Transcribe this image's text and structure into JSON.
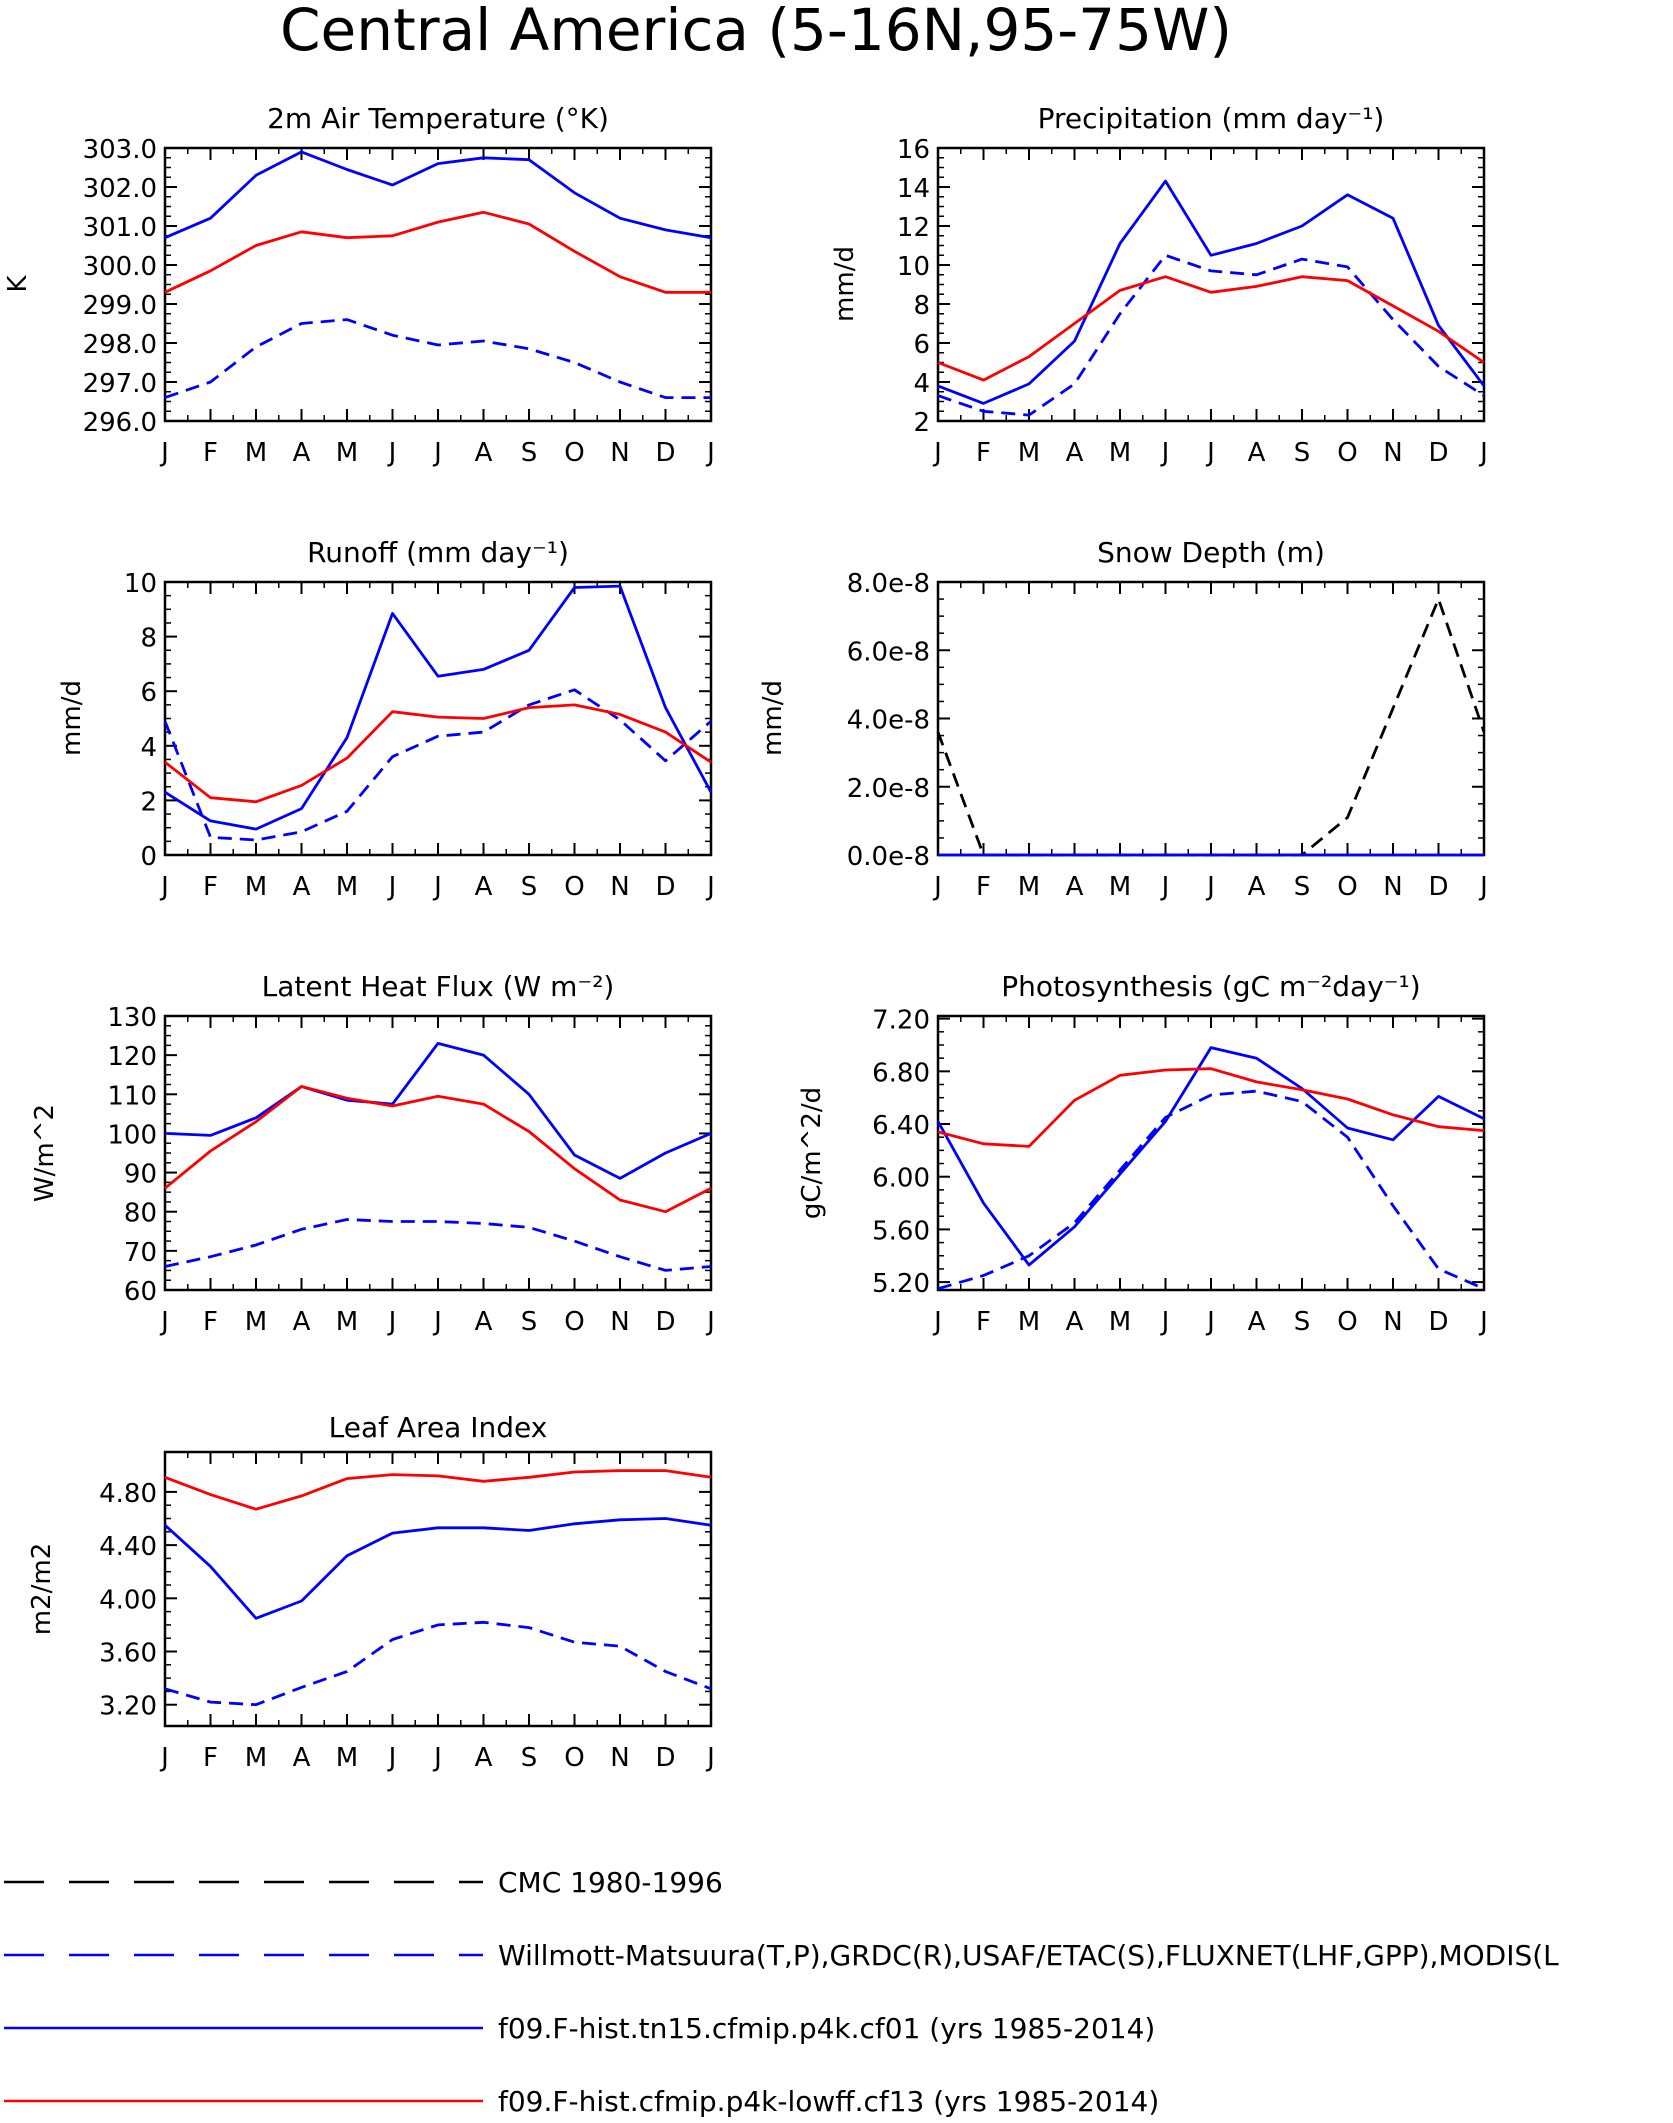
{
  "figure": {
    "title": "Central America (5-16N,95-75W)"
  },
  "months": [
    "J",
    "F",
    "M",
    "A",
    "M",
    "J",
    "J",
    "A",
    "S",
    "O",
    "N",
    "D",
    "J"
  ],
  "colors": {
    "cmc": "#000000",
    "obs": "#0000ff",
    "cf01": "#0000ff",
    "cf13": "#ff0000"
  },
  "legend": [
    {
      "key": "cmc",
      "label": "CMC 1980-1996",
      "color": "#000000",
      "dash": "dashed"
    },
    {
      "key": "obs",
      "label": "Willmott-Matsuura(T,P),GRDC(R),USAF/ETAC(S),FLUXNET(LHF,GPP),MODIS(L",
      "color": "#0000ff",
      "dash": "dashed"
    },
    {
      "key": "cf01",
      "label": "f09.F-hist.tn15.cfmip.p4k.cf01 (yrs 1985-2014)",
      "color": "#0000ff",
      "dash": "solid"
    },
    {
      "key": "cf13",
      "label": "f09.F-hist.cfmip.p4k-lowff.cf13 (yrs 1985-2014)",
      "color": "#ff0000",
      "dash": "solid"
    }
  ],
  "chart_data": [
    {
      "id": "temp",
      "type": "line",
      "title": "2m Air Temperature (°K)",
      "ylabel": "K",
      "ylim": [
        296,
        303
      ],
      "yticks": [
        296,
        297,
        298,
        299,
        300,
        301,
        302,
        303
      ],
      "ytick_labels": [
        "296.0",
        "297.0",
        "298.0",
        "299.0",
        "300.0",
        "301.0",
        "302.0",
        "303.0"
      ],
      "series": [
        {
          "key": "obs",
          "values": [
            296.6,
            297.0,
            297.9,
            298.5,
            298.6,
            298.2,
            297.95,
            298.05,
            297.85,
            297.5,
            297.0,
            296.6,
            296.6
          ]
        },
        {
          "key": "cf01",
          "values": [
            300.7,
            301.2,
            302.3,
            302.9,
            302.45,
            302.05,
            302.6,
            302.75,
            302.7,
            301.85,
            301.2,
            300.9,
            300.7
          ]
        },
        {
          "key": "cf13",
          "values": [
            299.3,
            299.85,
            300.5,
            300.85,
            300.7,
            300.75,
            301.1,
            301.35,
            301.05,
            300.35,
            299.7,
            299.3,
            299.3
          ]
        }
      ]
    },
    {
      "id": "precip",
      "type": "line",
      "title": "Precipitation (mm day⁻¹)",
      "ylabel": "mm/d",
      "ylim": [
        2,
        16
      ],
      "yticks": [
        2,
        4,
        6,
        8,
        10,
        12,
        14,
        16
      ],
      "ytick_labels": [
        "2",
        "4",
        "6",
        "8",
        "10",
        "12",
        "14",
        "16"
      ],
      "series": [
        {
          "key": "obs",
          "values": [
            3.3,
            2.5,
            2.3,
            3.9,
            7.5,
            10.5,
            9.7,
            9.5,
            10.3,
            9.9,
            7.2,
            4.8,
            3.3
          ]
        },
        {
          "key": "cf01",
          "values": [
            3.8,
            2.9,
            3.9,
            6.1,
            11.1,
            14.3,
            10.5,
            11.1,
            12.0,
            13.6,
            12.4,
            6.9,
            3.8
          ]
        },
        {
          "key": "cf13",
          "values": [
            5.0,
            4.1,
            5.3,
            7.0,
            8.7,
            9.4,
            8.6,
            8.9,
            9.4,
            9.2,
            7.9,
            6.6,
            5.0
          ]
        }
      ]
    },
    {
      "id": "runoff",
      "type": "line",
      "title": "Runoff (mm day⁻¹)",
      "ylabel": "mm/d",
      "ylim": [
        0,
        10
      ],
      "yticks": [
        0,
        2,
        4,
        6,
        8,
        10
      ],
      "ytick_labels": [
        "0",
        "2",
        "4",
        "6",
        "8",
        "10"
      ],
      "series": [
        {
          "key": "obs",
          "values": [
            4.9,
            0.65,
            0.55,
            0.85,
            1.6,
            3.6,
            4.35,
            4.5,
            5.5,
            6.05,
            4.95,
            3.45,
            4.9
          ]
        },
        {
          "key": "cf01",
          "values": [
            2.3,
            1.25,
            0.95,
            1.7,
            4.3,
            8.85,
            6.55,
            6.8,
            7.5,
            9.8,
            9.85,
            5.4,
            2.3
          ]
        },
        {
          "key": "cf13",
          "values": [
            3.4,
            2.1,
            1.95,
            2.55,
            3.55,
            5.25,
            5.05,
            5.0,
            5.4,
            5.5,
            5.15,
            4.5,
            3.4
          ]
        }
      ]
    },
    {
      "id": "snow",
      "type": "line",
      "title": "Snow Depth (m)",
      "ylabel": "mm/d",
      "ylim": [
        0,
        8e-08
      ],
      "yticks": [
        0,
        2e-08,
        4e-08,
        6e-08,
        8e-08
      ],
      "ytick_labels": [
        "0.0e-8",
        "2.0e-8",
        "4.0e-8",
        "6.0e-8",
        "8.0e-8"
      ],
      "series": [
        {
          "key": "cmc",
          "values": [
            3.6e-08,
            0,
            0,
            0,
            0,
            0,
            0,
            0,
            0,
            1.1e-08,
            4.3e-08,
            7.5e-08,
            3.6e-08
          ]
        },
        {
          "key": "cf01",
          "values": [
            0,
            0,
            0,
            0,
            0,
            0,
            0,
            0,
            0,
            0,
            0,
            0,
            0
          ]
        }
      ]
    },
    {
      "id": "lhf",
      "type": "line",
      "title": "Latent Heat Flux (W m⁻²)",
      "ylabel": "W/m^2",
      "ylim": [
        60,
        130
      ],
      "yticks": [
        60,
        70,
        80,
        90,
        100,
        110,
        120,
        130
      ],
      "ytick_labels": [
        "60",
        "70",
        "80",
        "90",
        "100",
        "110",
        "120",
        "130"
      ],
      "series": [
        {
          "key": "obs",
          "values": [
            66,
            68.5,
            71.5,
            75.5,
            78,
            77.5,
            77.5,
            77,
            76,
            72.5,
            68.5,
            65,
            66
          ]
        },
        {
          "key": "cf01",
          "values": [
            100,
            99.5,
            104,
            112,
            108.5,
            107.5,
            123,
            120,
            110,
            94.5,
            88.5,
            95,
            100
          ]
        },
        {
          "key": "cf13",
          "values": [
            86,
            95.5,
            103,
            112,
            109,
            107,
            109.5,
            107.5,
            100.5,
            91,
            83,
            80,
            86
          ]
        }
      ]
    },
    {
      "id": "gpp",
      "type": "line",
      "title": "Photosynthesis (gC m⁻²day⁻¹)",
      "ylabel": "gC/m^2/d",
      "ylim": [
        5.14,
        7.22
      ],
      "yticks": [
        5.2,
        5.6,
        6.0,
        6.4,
        6.8,
        7.2
      ],
      "ytick_labels": [
        "5.20",
        "5.60",
        "6.00",
        "6.40",
        "6.80",
        "7.20"
      ],
      "series": [
        {
          "key": "obs",
          "values": [
            5.15,
            5.25,
            5.4,
            5.65,
            6.05,
            6.45,
            6.62,
            6.65,
            6.57,
            6.3,
            5.78,
            5.3,
            5.15
          ]
        },
        {
          "key": "cf01",
          "values": [
            6.42,
            5.8,
            5.33,
            5.62,
            6.02,
            6.42,
            6.98,
            6.9,
            6.67,
            6.37,
            6.28,
            6.61,
            6.44
          ]
        },
        {
          "key": "cf13",
          "values": [
            6.34,
            6.25,
            6.23,
            6.58,
            6.77,
            6.81,
            6.82,
            6.72,
            6.66,
            6.59,
            6.47,
            6.38,
            6.35
          ]
        }
      ]
    },
    {
      "id": "lai",
      "type": "line",
      "title": "Leaf Area Index",
      "ylabel": "m2/m2",
      "ylim": [
        3.04,
        5.1
      ],
      "yticks": [
        3.2,
        3.6,
        4.0,
        4.4,
        4.8
      ],
      "ytick_labels": [
        "3.20",
        "3.60",
        "4.00",
        "4.40",
        "4.80"
      ],
      "series": [
        {
          "key": "obs",
          "values": [
            3.32,
            3.22,
            3.2,
            3.33,
            3.45,
            3.69,
            3.8,
            3.82,
            3.78,
            3.67,
            3.64,
            3.45,
            3.32
          ]
        },
        {
          "key": "cf01",
          "values": [
            4.55,
            4.24,
            3.85,
            3.98,
            4.32,
            4.49,
            4.53,
            4.53,
            4.51,
            4.56,
            4.59,
            4.6,
            4.55
          ]
        },
        {
          "key": "cf13",
          "values": [
            4.91,
            4.78,
            4.67,
            4.77,
            4.9,
            4.93,
            4.92,
            4.88,
            4.91,
            4.95,
            4.96,
            4.96,
            4.91
          ]
        }
      ]
    }
  ]
}
